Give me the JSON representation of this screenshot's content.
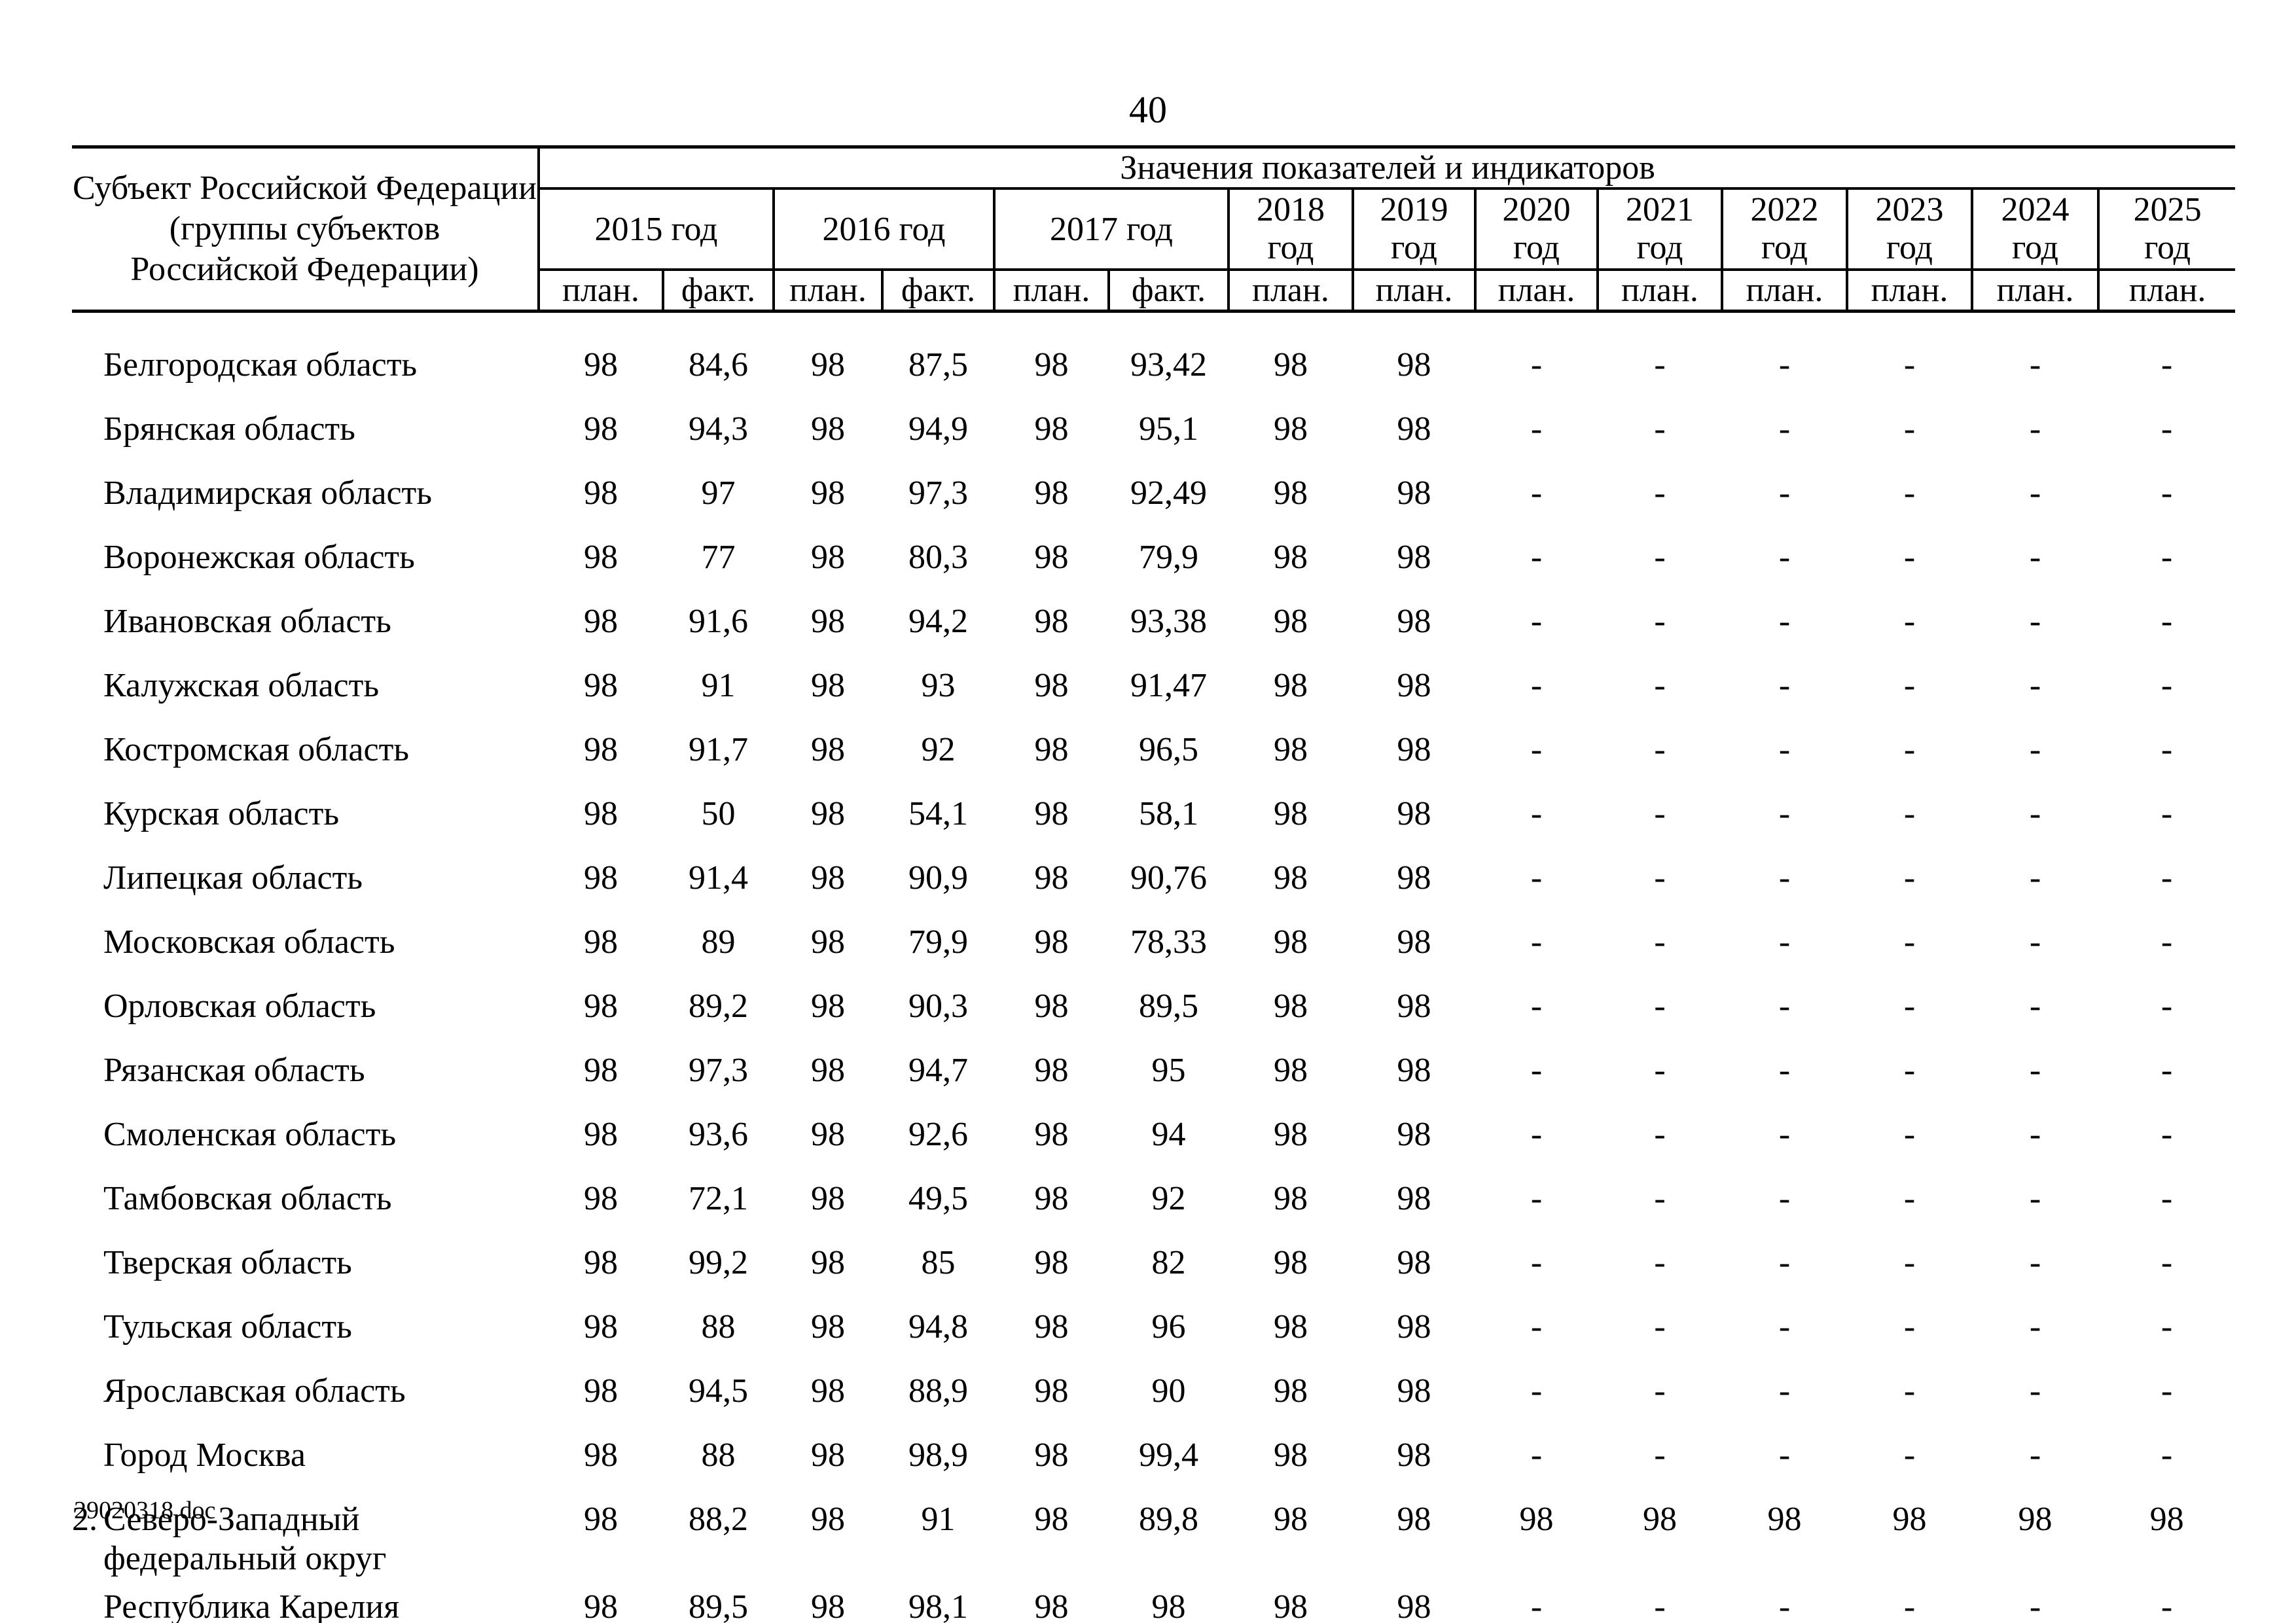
{
  "page": {
    "number": "40",
    "footer": "29020318.doc"
  },
  "table": {
    "subject_lines": [
      "Субъект Российской Федерации",
      "(группы субъектов",
      "Российской Федерации)"
    ],
    "values_header": "Значения показателей и индикаторов",
    "years_double": [
      "2015 год",
      "2016 год",
      "2017 год"
    ],
    "years_single": [
      {
        "year": "2018",
        "word": "год"
      },
      {
        "year": "2019",
        "word": "год"
      },
      {
        "year": "2020",
        "word": "год"
      },
      {
        "year": "2021",
        "word": "год"
      },
      {
        "year": "2022",
        "word": "год"
      },
      {
        "year": "2023",
        "word": "год"
      },
      {
        "year": "2024",
        "word": "год"
      },
      {
        "year": "2025",
        "word": "год"
      }
    ],
    "plan_label": "план.",
    "fact_label": "факт.",
    "rows": [
      {
        "num": "",
        "name": "Белгородская область",
        "values": [
          "98",
          "84,6",
          "98",
          "87,5",
          "98",
          "93,42",
          "98",
          "98",
          "-",
          "-",
          "-",
          "-",
          "-",
          "-"
        ]
      },
      {
        "num": "",
        "name": "Брянская область",
        "values": [
          "98",
          "94,3",
          "98",
          "94,9",
          "98",
          "95,1",
          "98",
          "98",
          "-",
          "-",
          "-",
          "-",
          "-",
          "-"
        ]
      },
      {
        "num": "",
        "name": "Владимирская область",
        "values": [
          "98",
          "97",
          "98",
          "97,3",
          "98",
          "92,49",
          "98",
          "98",
          "-",
          "-",
          "-",
          "-",
          "-",
          "-"
        ]
      },
      {
        "num": "",
        "name": "Воронежская область",
        "values": [
          "98",
          "77",
          "98",
          "80,3",
          "98",
          "79,9",
          "98",
          "98",
          "-",
          "-",
          "-",
          "-",
          "-",
          "-"
        ]
      },
      {
        "num": "",
        "name": "Ивановская область",
        "values": [
          "98",
          "91,6",
          "98",
          "94,2",
          "98",
          "93,38",
          "98",
          "98",
          "-",
          "-",
          "-",
          "-",
          "-",
          "-"
        ]
      },
      {
        "num": "",
        "name": "Калужская область",
        "values": [
          "98",
          "91",
          "98",
          "93",
          "98",
          "91,47",
          "98",
          "98",
          "-",
          "-",
          "-",
          "-",
          "-",
          "-"
        ]
      },
      {
        "num": "",
        "name": "Костромская область",
        "values": [
          "98",
          "91,7",
          "98",
          "92",
          "98",
          "96,5",
          "98",
          "98",
          "-",
          "-",
          "-",
          "-",
          "-",
          "-"
        ]
      },
      {
        "num": "",
        "name": "Курская область",
        "values": [
          "98",
          "50",
          "98",
          "54,1",
          "98",
          "58,1",
          "98",
          "98",
          "-",
          "-",
          "-",
          "-",
          "-",
          "-"
        ]
      },
      {
        "num": "",
        "name": "Липецкая область",
        "values": [
          "98",
          "91,4",
          "98",
          "90,9",
          "98",
          "90,76",
          "98",
          "98",
          "-",
          "-",
          "-",
          "-",
          "-",
          "-"
        ]
      },
      {
        "num": "",
        "name": "Московская область",
        "values": [
          "98",
          "89",
          "98",
          "79,9",
          "98",
          "78,33",
          "98",
          "98",
          "-",
          "-",
          "-",
          "-",
          "-",
          "-"
        ]
      },
      {
        "num": "",
        "name": "Орловская область",
        "values": [
          "98",
          "89,2",
          "98",
          "90,3",
          "98",
          "89,5",
          "98",
          "98",
          "-",
          "-",
          "-",
          "-",
          "-",
          "-"
        ]
      },
      {
        "num": "",
        "name": "Рязанская область",
        "values": [
          "98",
          "97,3",
          "98",
          "94,7",
          "98",
          "95",
          "98",
          "98",
          "-",
          "-",
          "-",
          "-",
          "-",
          "-"
        ]
      },
      {
        "num": "",
        "name": "Смоленская область",
        "values": [
          "98",
          "93,6",
          "98",
          "92,6",
          "98",
          "94",
          "98",
          "98",
          "-",
          "-",
          "-",
          "-",
          "-",
          "-"
        ]
      },
      {
        "num": "",
        "name": "Тамбовская область",
        "values": [
          "98",
          "72,1",
          "98",
          "49,5",
          "98",
          "92",
          "98",
          "98",
          "-",
          "-",
          "-",
          "-",
          "-",
          "-"
        ]
      },
      {
        "num": "",
        "name": "Тверская область",
        "values": [
          "98",
          "99,2",
          "98",
          "85",
          "98",
          "82",
          "98",
          "98",
          "-",
          "-",
          "-",
          "-",
          "-",
          "-"
        ]
      },
      {
        "num": "",
        "name": "Тульская область",
        "values": [
          "98",
          "88",
          "98",
          "94,8",
          "98",
          "96",
          "98",
          "98",
          "-",
          "-",
          "-",
          "-",
          "-",
          "-"
        ]
      },
      {
        "num": "",
        "name": "Ярославская область",
        "values": [
          "98",
          "94,5",
          "98",
          "88,9",
          "98",
          "90",
          "98",
          "98",
          "-",
          "-",
          "-",
          "-",
          "-",
          "-"
        ]
      },
      {
        "num": "",
        "name": "Город Москва",
        "values": [
          "98",
          "88",
          "98",
          "98,9",
          "98",
          "99,4",
          "98",
          "98",
          "-",
          "-",
          "-",
          "-",
          "-",
          "-"
        ]
      },
      {
        "num": "2.",
        "name": "Северо-Западный федеральный округ",
        "values": [
          "98",
          "88,2",
          "98",
          "91",
          "98",
          "89,8",
          "98",
          "98",
          "98",
          "98",
          "98",
          "98",
          "98",
          "98"
        ]
      },
      {
        "num": "",
        "name": "Республика Карелия",
        "values": [
          "98",
          "89,5",
          "98",
          "98,1",
          "98",
          "98",
          "98",
          "98",
          "-",
          "-",
          "-",
          "-",
          "-",
          "-"
        ]
      }
    ]
  }
}
